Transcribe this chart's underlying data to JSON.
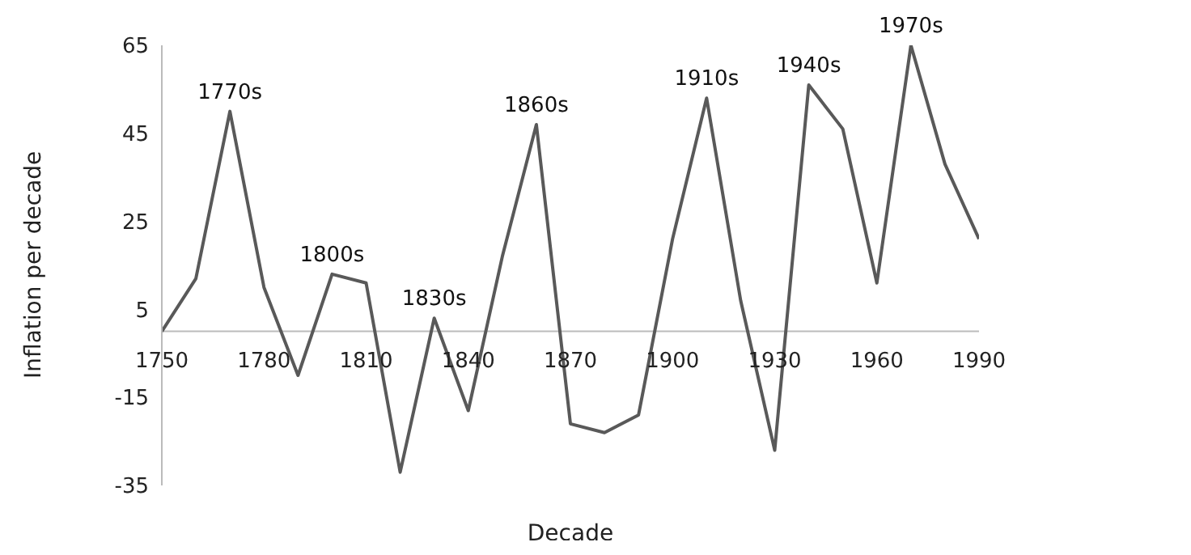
{
  "chart_data": {
    "type": "line",
    "xlabel": "Decade",
    "ylabel": "Inflation per decade",
    "x": [
      1750,
      1760,
      1770,
      1780,
      1790,
      1800,
      1810,
      1820,
      1830,
      1840,
      1850,
      1860,
      1870,
      1880,
      1890,
      1900,
      1910,
      1920,
      1930,
      1940,
      1950,
      1960,
      1970,
      1980,
      1990
    ],
    "series": [
      {
        "color": "#595959",
        "values": [
          0,
          12,
          50,
          10,
          -10,
          13,
          11,
          -32,
          3,
          -18,
          17,
          47,
          -21,
          -23,
          -19,
          21,
          53,
          7,
          -27,
          56,
          46,
          11,
          65,
          38,
          21
        ]
      }
    ],
    "xlim": [
      1750,
      1990
    ],
    "xticks": [
      1750,
      1780,
      1810,
      1840,
      1870,
      1900,
      1930,
      1960,
      1990
    ],
    "ylim": [
      -35,
      65
    ],
    "yticks": [
      -35,
      -15,
      5,
      25,
      45,
      65
    ],
    "grid": false,
    "legend": false,
    "marker": "none",
    "line_style": "solid",
    "annotations": [
      {
        "text": "1770s",
        "x": 1770,
        "y": 50
      },
      {
        "text": "1800s",
        "x": 1800,
        "y": 13
      },
      {
        "text": "1830s",
        "x": 1830,
        "y": 3
      },
      {
        "text": "1860s",
        "x": 1860,
        "y": 47
      },
      {
        "text": "1910s",
        "x": 1910,
        "y": 53
      },
      {
        "text": "1940s",
        "x": 1940,
        "y": 56
      },
      {
        "text": "1970s",
        "x": 1970,
        "y": 65
      }
    ]
  }
}
